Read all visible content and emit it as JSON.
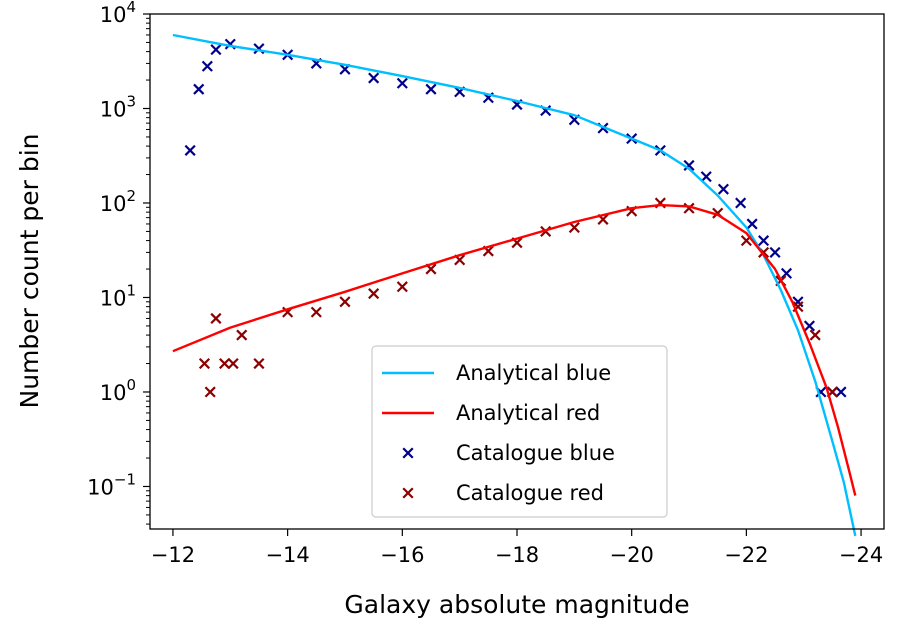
{
  "chart_data": {
    "type": "line+scatter",
    "title": "",
    "xlabel": "Galaxy absolute magnitude",
    "ylabel": "Number count per bin",
    "xlim": [
      -11.6,
      -24.4
    ],
    "ylim_log10": [
      -1.45,
      4.0
    ],
    "yscale": "log",
    "x_ticks": [
      -12,
      -14,
      -16,
      -18,
      -20,
      -22,
      -24
    ],
    "x_tick_labels": [
      "−12",
      "−14",
      "−16",
      "−18",
      "−20",
      "−22",
      "−24"
    ],
    "y_ticks": [
      {
        "value": 0.1,
        "base": "10",
        "exp": "−1"
      },
      {
        "value": 1,
        "base": "10",
        "exp": "0"
      },
      {
        "value": 10,
        "base": "10",
        "exp": "1"
      },
      {
        "value": 100,
        "base": "10",
        "exp": "2"
      },
      {
        "value": 1000,
        "base": "10",
        "exp": "3"
      },
      {
        "value": 10000,
        "base": "10",
        "exp": "4"
      }
    ],
    "legend_position": "lower center",
    "series": [
      {
        "name": "Analytical blue",
        "kind": "line",
        "color": "#00bfff",
        "x": [
          -12.0,
          -13.0,
          -14.0,
          -15.0,
          -16.0,
          -17.0,
          -18.0,
          -19.0,
          -20.0,
          -20.5,
          -21.0,
          -21.5,
          -22.0,
          -22.3,
          -22.6,
          -22.9,
          -23.2,
          -23.5,
          -23.7,
          -23.9
        ],
        "y": [
          6000,
          4600,
          3700,
          2900,
          2200,
          1650,
          1200,
          850,
          480,
          360,
          230,
          120,
          55,
          28,
          12,
          4.5,
          1.3,
          0.3,
          0.11,
          0.03
        ]
      },
      {
        "name": "Analytical red",
        "kind": "line",
        "color": "#ff0000",
        "x": [
          -12.0,
          -13.0,
          -14.0,
          -15.0,
          -16.0,
          -17.0,
          -18.0,
          -19.0,
          -20.0,
          -20.5,
          -21.0,
          -21.5,
          -22.0,
          -22.5,
          -22.8,
          -23.1,
          -23.4,
          -23.6,
          -23.8,
          -23.9
        ],
        "y": [
          2.7,
          4.8,
          7.5,
          11.5,
          18,
          28,
          42,
          63,
          88,
          95,
          92,
          75,
          48,
          20,
          9,
          3.3,
          1.1,
          0.42,
          0.14,
          0.08
        ]
      },
      {
        "name": "Catalogue blue",
        "kind": "scatter",
        "color": "#00008b",
        "x": [
          -12.3,
          -12.45,
          -12.6,
          -12.75,
          -13.0,
          -13.5,
          -14.0,
          -14.5,
          -15.0,
          -15.5,
          -16.0,
          -16.5,
          -17.0,
          -17.5,
          -18.0,
          -18.5,
          -19.0,
          -19.5,
          -20.0,
          -20.5,
          -21.0,
          -21.3,
          -21.6,
          -21.9,
          -22.1,
          -22.3,
          -22.5,
          -22.7,
          -22.9,
          -23.1,
          -23.3,
          -23.5,
          -23.65
        ],
        "y": [
          360,
          1600,
          2800,
          4200,
          4800,
          4300,
          3700,
          3000,
          2600,
          2100,
          1850,
          1600,
          1500,
          1300,
          1100,
          950,
          760,
          620,
          480,
          360,
          250,
          190,
          140,
          100,
          60,
          40,
          30,
          18,
          9,
          5,
          1,
          1,
          1
        ]
      },
      {
        "name": "Catalogue red",
        "kind": "scatter",
        "color": "#8b0000",
        "x": [
          -12.55,
          -12.65,
          -12.75,
          -12.9,
          -13.05,
          -13.2,
          -13.5,
          -14.0,
          -14.5,
          -15.0,
          -15.5,
          -16.0,
          -16.5,
          -17.0,
          -17.5,
          -18.0,
          -18.5,
          -19.0,
          -19.5,
          -20.0,
          -20.5,
          -21.0,
          -21.5,
          -22.0,
          -22.3,
          -22.6,
          -22.9,
          -23.2,
          -23.5
        ],
        "y": [
          2,
          1,
          6,
          2,
          2,
          4,
          2,
          7,
          7,
          9,
          11,
          13,
          20,
          25,
          31,
          38,
          50,
          55,
          67,
          82,
          100,
          88,
          78,
          40,
          30,
          15,
          8,
          4,
          1
        ]
      }
    ]
  }
}
